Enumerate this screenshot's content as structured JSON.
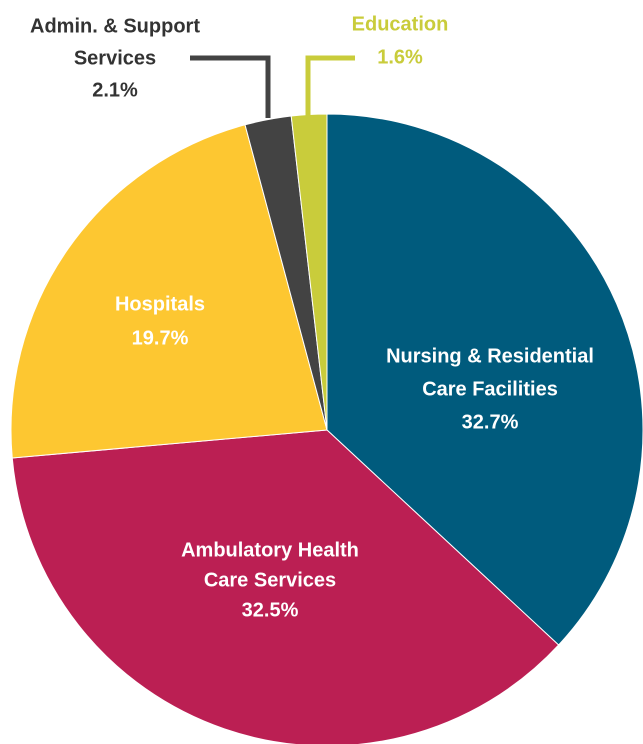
{
  "chart_data": {
    "type": "pie",
    "categories": [
      [
        "Nursing & Residential",
        "Care Facilities"
      ],
      [
        "Ambulatory Health",
        "Care Services"
      ],
      [
        "Hospitals"
      ],
      [
        "Admin. & Support",
        "Services"
      ],
      [
        "Education"
      ]
    ],
    "values": [
      32.7,
      32.5,
      19.7,
      2.1,
      1.6
    ],
    "value_labels": [
      "32.7%",
      "32.5%",
      "19.7%",
      "2.1%",
      "1.6%"
    ],
    "colors": [
      "#005b7d",
      "#bb1f53",
      "#fdc731",
      "#434343",
      "#c9cc3b"
    ]
  }
}
